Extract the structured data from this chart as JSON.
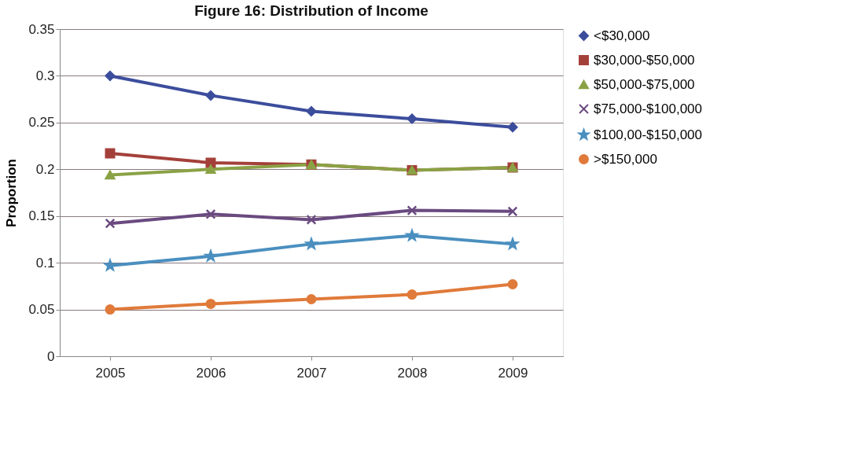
{
  "chart_data": {
    "type": "line",
    "title": "Figure 16: Distribution of Income",
    "ylabel": "Proportion",
    "categories": [
      "2005",
      "2006",
      "2007",
      "2008",
      "2009"
    ],
    "ylim": [
      0,
      0.35
    ],
    "yticks": [
      0,
      0.05,
      0.1,
      0.15,
      0.2,
      0.25,
      0.3,
      0.35
    ],
    "grid": "y",
    "legend": "right",
    "line_style": "solid",
    "series": [
      {
        "name": "<$30,000",
        "color": "#3c4d9c",
        "marker": "diamond",
        "values": [
          0.3,
          0.279,
          0.262,
          0.254,
          0.245
        ]
      },
      {
        "name": "$30,000-$50,000",
        "color": "#a4403a",
        "marker": "square",
        "values": [
          0.217,
          0.207,
          0.205,
          0.199,
          0.202
        ]
      },
      {
        "name": "$50,000-$75,000",
        "color": "#8aa245",
        "marker": "triangle",
        "values": [
          0.194,
          0.2,
          0.205,
          0.199,
          0.202
        ]
      },
      {
        "name": "$75,000-$100,000",
        "color": "#6a4a80",
        "marker": "cross",
        "values": [
          0.142,
          0.152,
          0.146,
          0.156,
          0.155
        ]
      },
      {
        "name": "$100,00-$150,000",
        "color": "#4a8fbf",
        "marker": "star",
        "values": [
          0.097,
          0.107,
          0.12,
          0.129,
          0.12
        ]
      },
      {
        "name": ">$150,000",
        "color": "#e07a3a",
        "marker": "circle",
        "values": [
          0.05,
          0.056,
          0.061,
          0.066,
          0.077
        ]
      }
    ]
  }
}
